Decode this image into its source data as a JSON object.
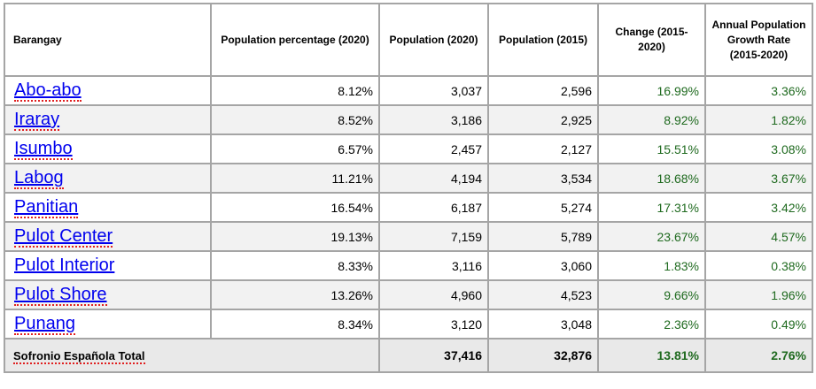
{
  "headers": {
    "barangay": "Barangay",
    "pct2020": "Population percentage (2020)",
    "pop2020": "Population (2020)",
    "pop2015": "Population (2015)",
    "change": "Change (2015-2020)",
    "growth": "Annual Population Growth Rate (2015-2020)"
  },
  "rows": [
    {
      "name": "Abo-abo",
      "pct": "8.12%",
      "pop2020": "3,037",
      "pop2015": "2,596",
      "change": "16.99%",
      "growth": "3.36%"
    },
    {
      "name": "Iraray",
      "pct": "8.52%",
      "pop2020": "3,186",
      "pop2015": "2,925",
      "change": "8.92%",
      "growth": "1.82%"
    },
    {
      "name": "Isumbo",
      "pct": "6.57%",
      "pop2020": "2,457",
      "pop2015": "2,127",
      "change": "15.51%",
      "growth": "3.08%"
    },
    {
      "name": "Labog",
      "pct": "11.21%",
      "pop2020": "4,194",
      "pop2015": "3,534",
      "change": "18.68%",
      "growth": "3.67%"
    },
    {
      "name": "Panitian",
      "pct": "16.54%",
      "pop2020": "6,187",
      "pop2015": "5,274",
      "change": "17.31%",
      "growth": "3.42%"
    },
    {
      "name": "Pulot Center",
      "pct": "19.13%",
      "pop2020": "7,159",
      "pop2015": "5,789",
      "change": "23.67%",
      "growth": "4.57%"
    },
    {
      "name": "Pulot Interior",
      "pct": "8.33%",
      "pop2020": "3,116",
      "pop2015": "3,060",
      "change": "1.83%",
      "growth": "0.38%"
    },
    {
      "name": "Pulot Shore",
      "pct": "13.26%",
      "pop2020": "4,960",
      "pop2015": "4,523",
      "change": "9.66%",
      "growth": "1.96%"
    },
    {
      "name": "Punang",
      "pct": "8.34%",
      "pop2020": "3,120",
      "pop2015": "3,048",
      "change": "2.36%",
      "growth": "0.49%"
    }
  ],
  "total": {
    "label": "Sofronio Española Total",
    "pop2020": "37,416",
    "pop2015": "32,876",
    "change": "13.81%",
    "growth": "2.76%"
  },
  "colors": {
    "link": "#0000ee",
    "positive": "#1f6a1f",
    "border": "#a5a5a5",
    "alt_row": "#f2f2f2",
    "total_row": "#e9e9e9"
  }
}
